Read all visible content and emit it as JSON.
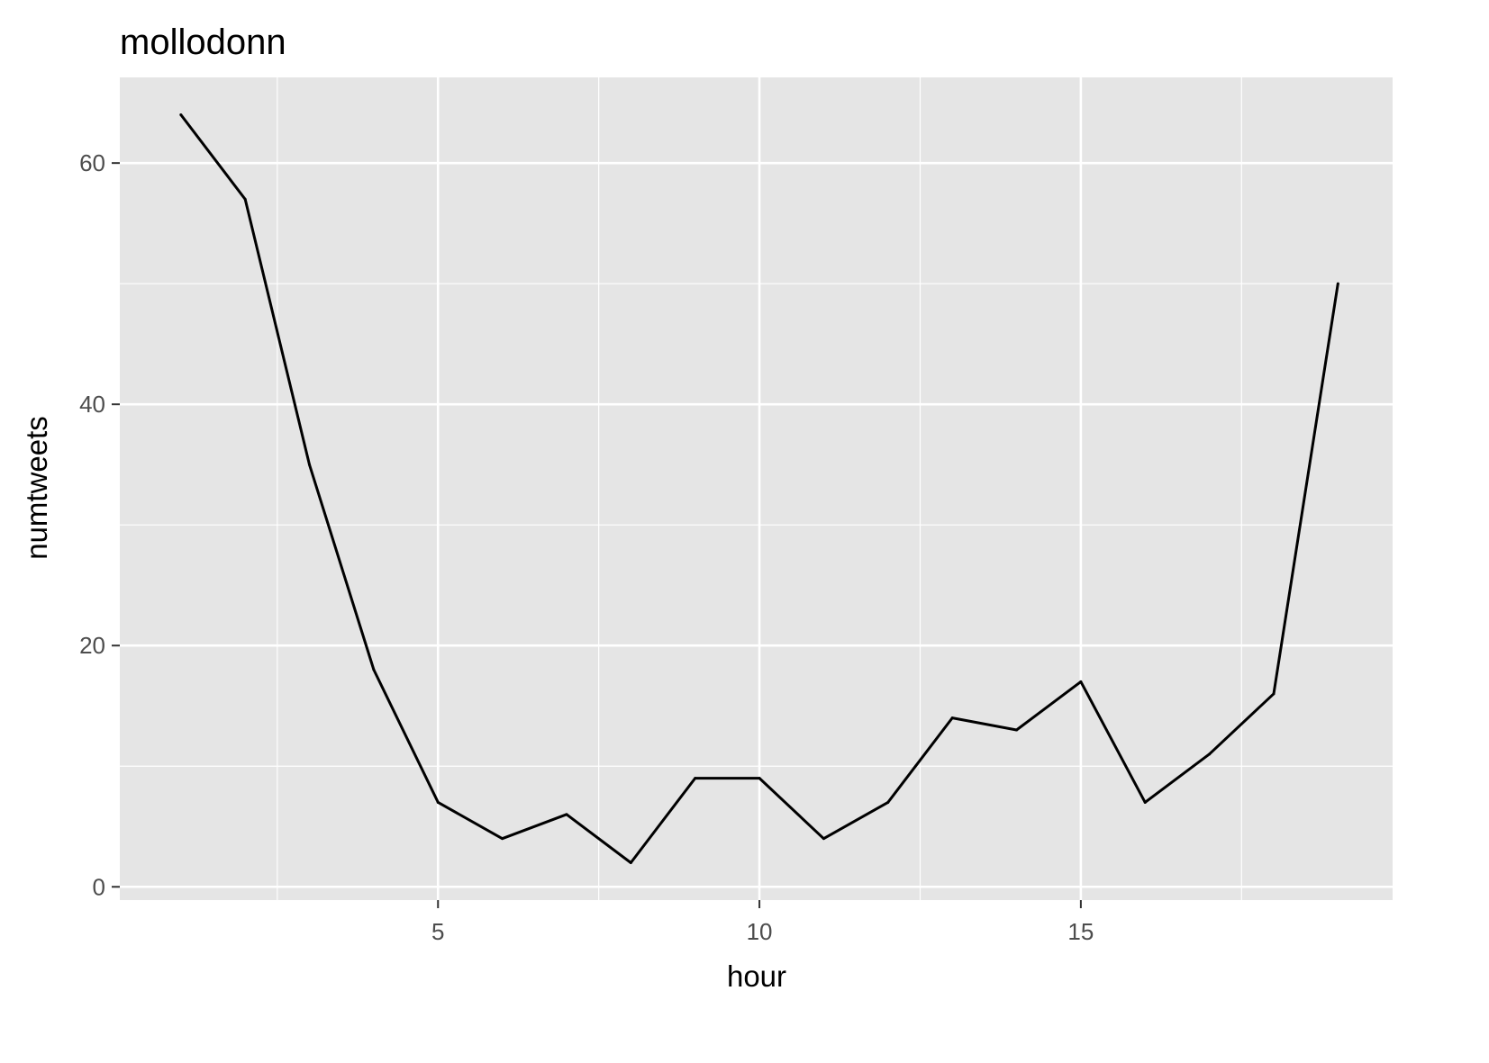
{
  "chart_data": {
    "type": "line",
    "title": "mollodonn",
    "xlabel": "hour",
    "ylabel": "numtweets",
    "x": [
      1,
      2,
      3,
      4,
      5,
      6,
      7,
      8,
      9,
      10,
      11,
      12,
      13,
      14,
      15,
      16,
      17,
      18,
      19
    ],
    "series": [
      {
        "values": [
          64,
          57,
          35,
          18,
          7,
          4,
          6,
          2,
          9,
          9,
          4,
          7,
          14,
          13,
          17,
          7,
          11,
          16,
          50
        ]
      }
    ],
    "xlim": [
      0.05,
      19.85
    ],
    "ylim": [
      -1.1,
      67.1
    ],
    "x_ticks": [
      5,
      10,
      15
    ],
    "x_tick_labels": [
      "5",
      "10",
      "15"
    ],
    "y_ticks": [
      0,
      20,
      40,
      60
    ],
    "y_tick_labels": [
      "0",
      "20",
      "40",
      "60"
    ],
    "x_minor_ticks": [
      2.5,
      7.5,
      12.5,
      17.5
    ],
    "y_minor_ticks": [
      10,
      30,
      50
    ],
    "grid": true,
    "legend": "none",
    "colors": {
      "panel_background": "#e5e5e5",
      "grid": "#ffffff",
      "line": "#000000",
      "tick_label": "#4d4d4d",
      "tick_mark": "#333333"
    }
  }
}
